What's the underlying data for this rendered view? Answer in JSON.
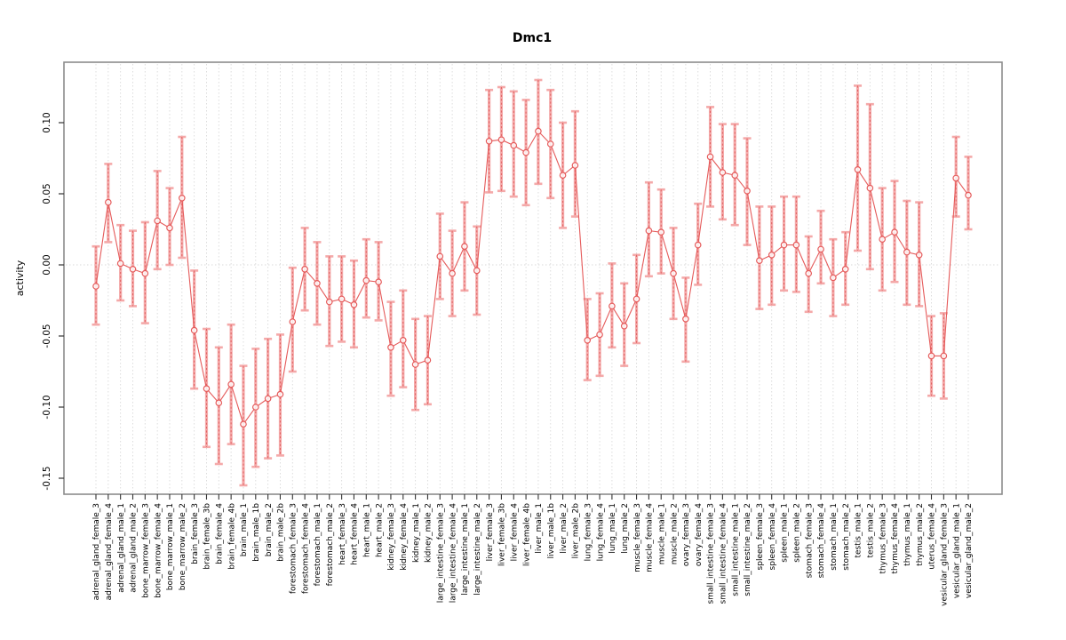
{
  "chart_data": {
    "type": "line",
    "title": "Dmc1",
    "xlabel": "",
    "ylabel": "activity",
    "ylim": [
      -0.161,
      0.1425
    ],
    "yticks": [
      0.1,
      0.05,
      0.0,
      -0.05,
      -0.1,
      -0.15
    ],
    "grid": {
      "vertical_per_category": true,
      "zero_line": true,
      "style": "dotted"
    },
    "legend": "none",
    "point_style": "open-circle",
    "error_bars": true,
    "categories": [
      "adrenal_gland_female_3",
      "adrenal_gland_female_4",
      "adrenal_gland_male_1",
      "adrenal_gland_male_2",
      "bone_marrow_female_3",
      "bone_marrow_female_4",
      "bone_marrow_male_1",
      "bone_marrow_male_2",
      "brain_female_3",
      "brain_female_3b",
      "brain_female_4",
      "brain_female_4b",
      "brain_male_1",
      "brain_male_1b",
      "brain_male_2",
      "brain_male_2b",
      "forestomach_female_3",
      "forestomach_female_4",
      "forestomach_male_1",
      "forestomach_male_2",
      "heart_female_3",
      "heart_female_4",
      "heart_male_1",
      "heart_male_2",
      "kidney_female_3",
      "kidney_female_4",
      "kidney_male_1",
      "kidney_male_2",
      "large_intestine_female_3",
      "large_intestine_female_4",
      "large_intestine_male_1",
      "large_intestine_male_2",
      "liver_female_3",
      "liver_female_3b",
      "liver_female_4",
      "liver_female_4b",
      "liver_male_1",
      "liver_male_1b",
      "liver_male_2",
      "liver_male_2b",
      "lung_female_3",
      "lung_female_4",
      "lung_male_1",
      "lung_male_2",
      "muscle_female_3",
      "muscle_female_4",
      "muscle_male_1",
      "muscle_male_2",
      "ovary_female_3",
      "ovary_female_4",
      "small_intestine_female_3",
      "small_intestine_female_4",
      "small_intestine_male_1",
      "small_intestine_male_2",
      "spleen_female_3",
      "spleen_female_4",
      "spleen_male_1",
      "spleen_male_2",
      "stomach_female_3",
      "stomach_female_4",
      "stomach_male_1",
      "stomach_male_2",
      "testis_male_1",
      "testis_male_2",
      "thymus_female_3",
      "thymus_female_4",
      "thymus_male_1",
      "thymus_male_2",
      "uterus_female_4",
      "vesicular_gland_female_3",
      "vesicular_gland_male_1",
      "vesicular_gland_male_2"
    ],
    "series": [
      {
        "name": "activity",
        "values": [
          -0.015,
          0.044,
          0.001,
          -0.003,
          -0.006,
          0.031,
          0.026,
          0.047,
          -0.046,
          -0.087,
          -0.097,
          -0.084,
          -0.112,
          -0.1,
          -0.094,
          -0.091,
          -0.04,
          -0.003,
          -0.013,
          -0.026,
          -0.024,
          -0.028,
          -0.011,
          -0.012,
          -0.058,
          -0.053,
          -0.07,
          -0.067,
          0.006,
          -0.006,
          0.013,
          -0.004,
          0.087,
          0.088,
          0.084,
          0.079,
          0.094,
          0.085,
          0.063,
          0.07,
          -0.053,
          -0.049,
          -0.029,
          -0.043,
          -0.024,
          0.024,
          0.023,
          -0.006,
          -0.038,
          0.014,
          0.076,
          0.065,
          0.063,
          0.052,
          0.003,
          0.007,
          0.014,
          0.014,
          -0.006,
          0.011,
          -0.009,
          -0.003,
          0.067,
          0.054,
          0.018,
          0.023,
          0.009,
          0.007,
          -0.064,
          -0.064,
          0.061,
          0.049
        ],
        "lower": [
          -0.042,
          0.016,
          -0.025,
          -0.029,
          -0.041,
          -0.003,
          0.0,
          0.005,
          -0.087,
          -0.128,
          -0.14,
          -0.126,
          -0.155,
          -0.142,
          -0.136,
          -0.134,
          -0.075,
          -0.032,
          -0.042,
          -0.057,
          -0.054,
          -0.058,
          -0.037,
          -0.039,
          -0.092,
          -0.086,
          -0.102,
          -0.098,
          -0.024,
          -0.036,
          -0.018,
          -0.035,
          0.051,
          0.052,
          0.048,
          0.042,
          0.057,
          0.047,
          0.026,
          0.034,
          -0.081,
          -0.078,
          -0.058,
          -0.071,
          -0.055,
          -0.008,
          -0.006,
          -0.038,
          -0.068,
          -0.014,
          0.041,
          0.032,
          0.028,
          0.014,
          -0.031,
          -0.028,
          -0.018,
          -0.019,
          -0.033,
          -0.013,
          -0.036,
          -0.028,
          0.01,
          -0.003,
          -0.018,
          -0.012,
          -0.028,
          -0.029,
          -0.092,
          -0.094,
          0.034,
          0.025
        ],
        "upper": [
          0.013,
          0.071,
          0.028,
          0.024,
          0.03,
          0.066,
          0.054,
          0.09,
          -0.004,
          -0.045,
          -0.058,
          -0.042,
          -0.071,
          -0.059,
          -0.052,
          -0.049,
          -0.002,
          0.026,
          0.016,
          0.006,
          0.006,
          0.003,
          0.018,
          0.016,
          -0.026,
          -0.018,
          -0.038,
          -0.036,
          0.036,
          0.024,
          0.044,
          0.027,
          0.123,
          0.125,
          0.122,
          0.116,
          0.13,
          0.123,
          0.1,
          0.108,
          -0.024,
          -0.02,
          0.001,
          -0.013,
          0.007,
          0.058,
          0.053,
          0.026,
          -0.009,
          0.043,
          0.111,
          0.099,
          0.099,
          0.089,
          0.041,
          0.041,
          0.048,
          0.048,
          0.02,
          0.038,
          0.018,
          0.023,
          0.126,
          0.113,
          0.054,
          0.059,
          0.045,
          0.044,
          -0.036,
          -0.034,
          0.09,
          0.076
        ]
      }
    ],
    "colors": {
      "point_line": "#e55a5a",
      "error_stem_dashed": "#e06060",
      "error_bar_light": "#f4a9a9",
      "grid": "#d9d9d9",
      "frame": "#8c8c8c",
      "tick": "#333333",
      "text": "#111111"
    }
  }
}
